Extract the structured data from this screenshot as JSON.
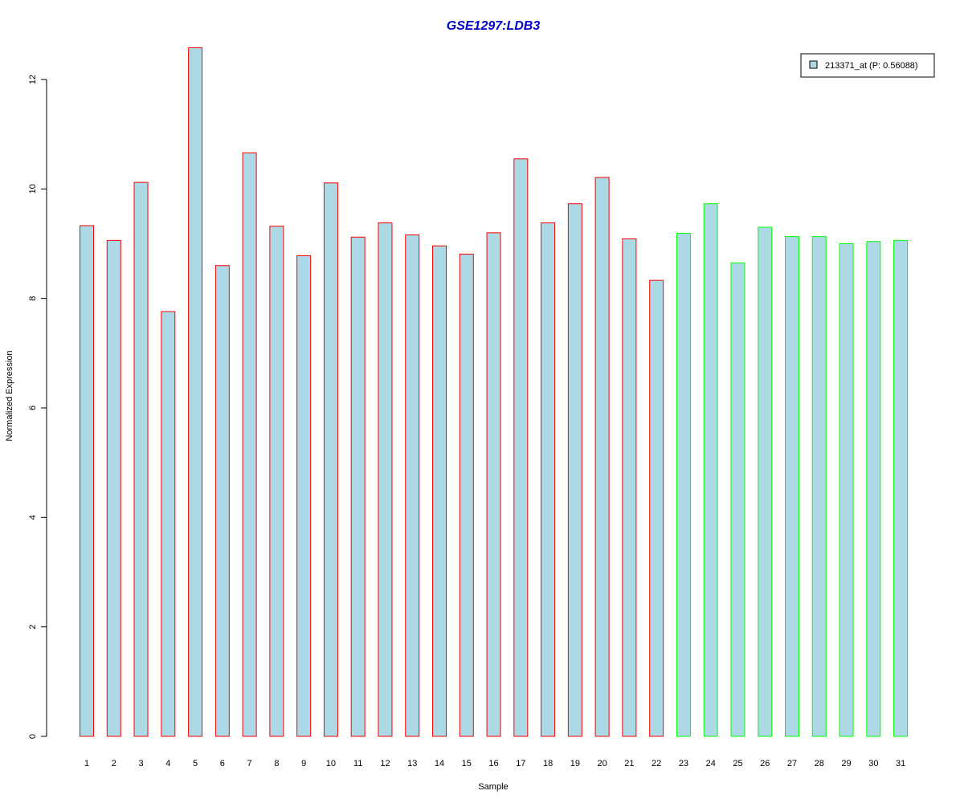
{
  "chart_data": {
    "type": "bar",
    "title": "GSE1297:LDB3",
    "xlabel": "Sample",
    "ylabel": "Normalized Expression",
    "categories": [
      "1",
      "2",
      "3",
      "4",
      "5",
      "6",
      "7",
      "8",
      "9",
      "10",
      "11",
      "12",
      "13",
      "14",
      "15",
      "16",
      "17",
      "18",
      "19",
      "20",
      "21",
      "22",
      "23",
      "24",
      "25",
      "26",
      "27",
      "28",
      "29",
      "30",
      "31"
    ],
    "series": [
      {
        "name": "213371_at (P: 0.56088)",
        "values": [
          9.33,
          9.06,
          10.12,
          7.76,
          12.58,
          8.6,
          10.66,
          9.32,
          8.78,
          10.11,
          9.12,
          9.38,
          9.16,
          8.96,
          8.81,
          9.2,
          10.55,
          9.38,
          9.73,
          10.21,
          9.09,
          8.33,
          9.19,
          9.73,
          8.65,
          9.3,
          9.13,
          9.13,
          9.0,
          9.04,
          9.06
        ]
      }
    ],
    "ylim": [
      0,
      12.6
    ],
    "yticks": [
      0,
      2,
      4,
      6,
      8,
      10,
      12
    ],
    "grid": false,
    "legend_position": "top-right",
    "colors": {
      "bar_fill": "#ADD8E6",
      "group1_border": "#FF0000",
      "group2_border": "#00FF00",
      "title": "#0000CC"
    },
    "border_groups": [
      "red",
      "red",
      "red",
      "red",
      "red",
      "red",
      "red",
      "red",
      "red",
      "red",
      "red",
      "red",
      "red",
      "red",
      "red",
      "red",
      "red",
      "red",
      "red",
      "red",
      "red",
      "red",
      "green",
      "green",
      "green",
      "green",
      "green",
      "green",
      "green",
      "green",
      "green"
    ]
  }
}
